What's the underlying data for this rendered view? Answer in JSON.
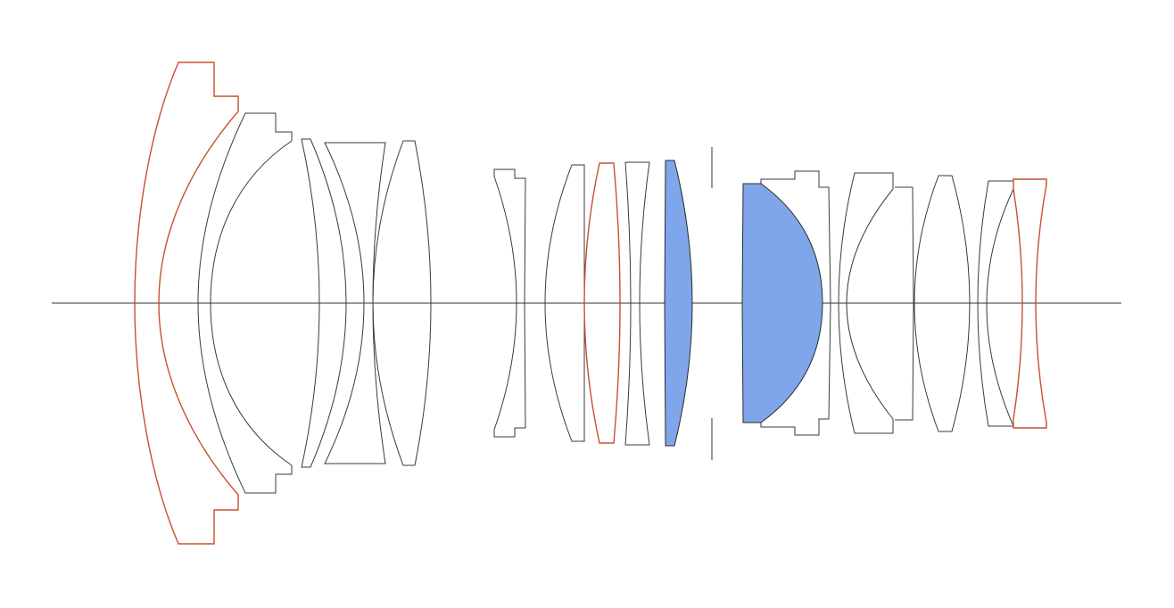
{
  "diagram": {
    "type": "optical lens cross-section",
    "element_count": 16,
    "colors": {
      "outline": "#3a3a3a",
      "special_glass_outline": "#c8502e",
      "highlighted_fill": "#7fa6ea",
      "background": "#ffffff"
    },
    "highlighted_elements": [
      10,
      11
    ],
    "red_outlined_elements": [
      1,
      8,
      16
    ],
    "has_aperture_stop": true,
    "has_optical_axis": true
  }
}
